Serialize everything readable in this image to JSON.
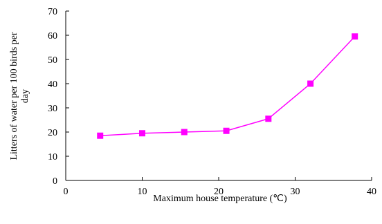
{
  "chart_data": {
    "type": "line",
    "title": "",
    "xlabel": "Maximum house temperature (℃)",
    "ylabel_lines": [
      "Litters of water per 100 birds per",
      "day"
    ],
    "xlim": [
      0,
      40
    ],
    "ylim": [
      0,
      70
    ],
    "x_ticks": [
      0,
      10,
      20,
      30,
      40
    ],
    "y_ticks": [
      0,
      10,
      20,
      30,
      40,
      50,
      60,
      70
    ],
    "grid": false,
    "legend": "none",
    "series": [
      {
        "color": "#ff00ff",
        "marker": "square",
        "x": [
          4.5,
          10,
          15.5,
          21,
          26.5,
          32,
          37.8
        ],
        "y": [
          18.5,
          19.5,
          20,
          20.5,
          25.5,
          40,
          59.5
        ]
      }
    ]
  }
}
